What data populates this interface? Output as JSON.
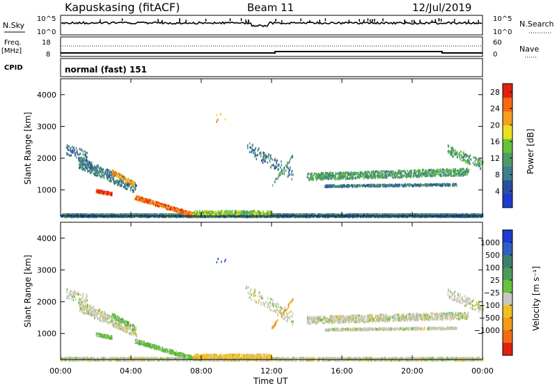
{
  "header": {
    "station": "Kapuskasing (fitACF)",
    "beam": "Beam 11",
    "date": "12/Jul/2019"
  },
  "status_panels": {
    "nsky_label": "N.Sky",
    "nsearch_label": "N.Search",
    "noise_ticks": [
      "10^5",
      "10^0"
    ],
    "freq_label": "Freq.",
    "freq_unit": "[MHz]",
    "freq_ticks": [
      "18",
      "8"
    ],
    "nave_label": "Nave",
    "nave_ticks": [
      "60",
      "0"
    ],
    "cpid_label": "CPID",
    "cpid_value": "normal (fast) 151"
  },
  "colors": {
    "power_scale": [
      "#1f3bd0",
      "#2c4fa0",
      "#3f7e8e",
      "#4f9a6a",
      "#66c23a",
      "#e8e020",
      "#f4a020",
      "#f46a14",
      "#e02010"
    ],
    "velocity_scale": [
      "#1f3bd0",
      "#2f5fc0",
      "#3f7e6e",
      "#4f9a5a",
      "#66c23a",
      "#c8c8c0",
      "#f0c020",
      "#f49a18",
      "#f46a14",
      "#e02010"
    ]
  },
  "chart_data": [
    {
      "type": "heatmap",
      "panel": "power",
      "ylabel": "Slant Range [km]",
      "ylim": [
        180,
        4500
      ],
      "yticks": [
        "1000",
        "2000",
        "3000",
        "4000"
      ],
      "xlim_hours": [
        0,
        24
      ],
      "xtick_labels": [
        "00:00",
        "04:00",
        "08:00",
        "12:00",
        "16:00",
        "20:00",
        "00:00"
      ],
      "colorbar_label": "Power [dB]",
      "colorbar_ticks": [
        "4",
        "8",
        "12",
        "16",
        "20",
        "24",
        "28"
      ],
      "colorbar_range": [
        0,
        30
      ]
    },
    {
      "type": "heatmap",
      "panel": "velocity",
      "ylabel": "Slant Range [km]",
      "ylim": [
        180,
        4500
      ],
      "yticks": [
        "1000",
        "2000",
        "3000",
        "4000"
      ],
      "xlim_hours": [
        0,
        24
      ],
      "xtick_labels": [
        "00:00",
        "04:00",
        "08:00",
        "12:00",
        "16:00",
        "20:00",
        "00:00"
      ],
      "xlabel": "Time UT",
      "colorbar_label": "Velocity [m s⁻¹]",
      "colorbar_ticks": [
        "1000",
        "500",
        "100",
        "25",
        "−25",
        "−100",
        "−500",
        "−1000"
      ]
    }
  ]
}
